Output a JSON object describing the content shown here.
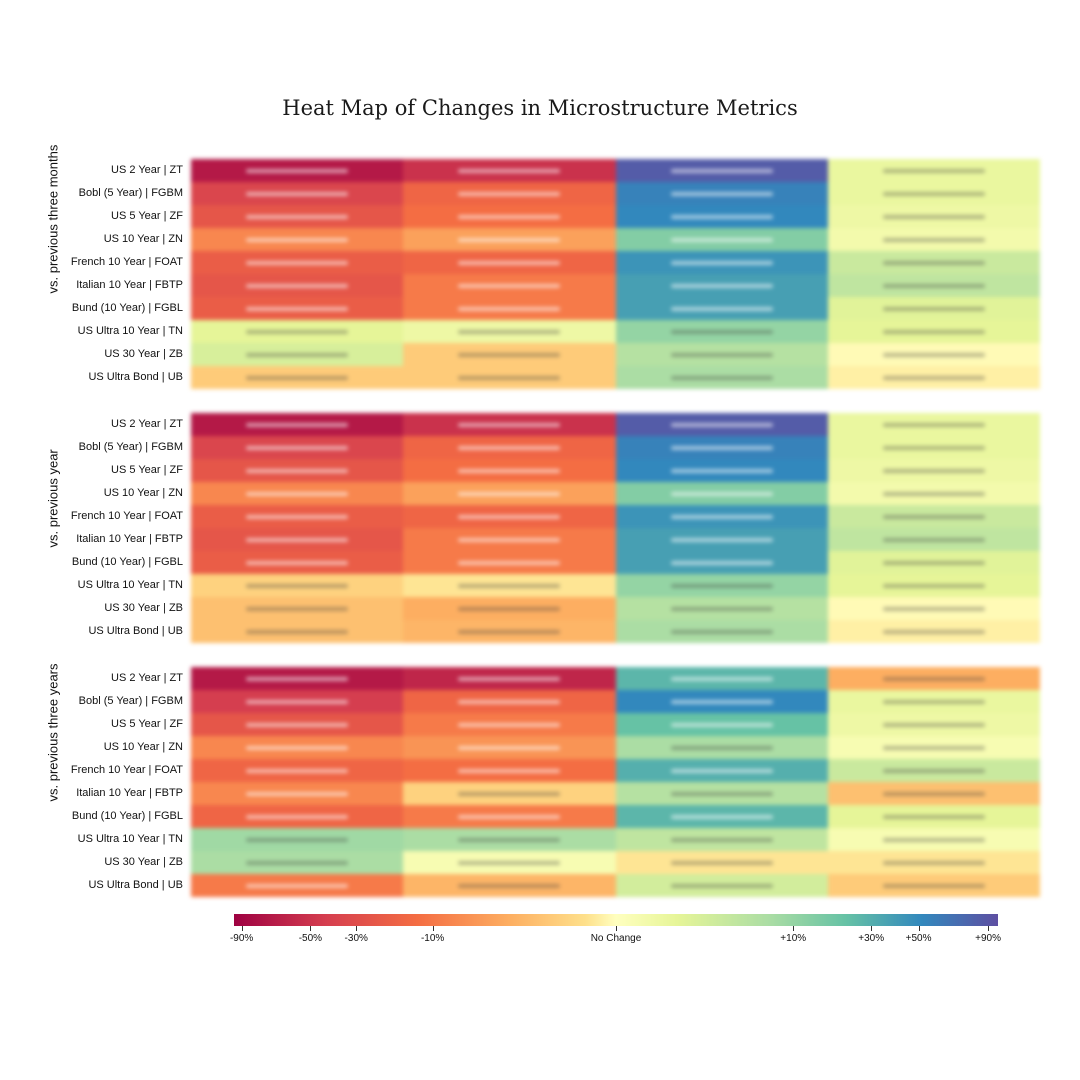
{
  "chart_data": {
    "type": "heatmap",
    "title": "Heat Map of Changes in Microstructure Metrics",
    "columns": [
      "",
      "",
      "",
      ""
    ],
    "rows": [
      "US 2 Year | ZT",
      "Bobl (5 Year) | FGBM",
      "US 5 Year | ZF",
      "US 10 Year | ZN",
      "French 10 Year | FOAT",
      "Italian 10 Year | FBTP",
      "Bund (10 Year) | FGBL",
      "US Ultra 10 Year | TN",
      "US 30 Year | ZB",
      "US Ultra Bond | UB"
    ],
    "groups": [
      {
        "name": "vs. previous three months",
        "values": [
          [
            -90,
            -80,
            90,
            5
          ],
          [
            -70,
            -50,
            60,
            5
          ],
          [
            -60,
            -45,
            55,
            4
          ],
          [
            -35,
            -25,
            25,
            3
          ],
          [
            -55,
            -50,
            50,
            12
          ],
          [
            -60,
            -40,
            45,
            14
          ],
          [
            -55,
            -40,
            45,
            7
          ],
          [
            6,
            4,
            22,
            6
          ],
          [
            9,
            -12,
            16,
            -1
          ],
          [
            -12,
            -12,
            18,
            -3
          ]
        ]
      },
      {
        "name": "vs. previous year",
        "values": [
          [
            -90,
            -80,
            90,
            5
          ],
          [
            -70,
            -50,
            60,
            5
          ],
          [
            -60,
            -45,
            55,
            4
          ],
          [
            -35,
            -25,
            25,
            3
          ],
          [
            -55,
            -50,
            50,
            12
          ],
          [
            -60,
            -40,
            45,
            14
          ],
          [
            -55,
            -40,
            45,
            7
          ],
          [
            -10,
            -5,
            22,
            6
          ],
          [
            -15,
            -20,
            16,
            -1
          ],
          [
            -15,
            -18,
            18,
            -3
          ]
        ]
      },
      {
        "name": "vs. previous three years",
        "values": [
          [
            -90,
            -85,
            35,
            -20
          ],
          [
            -75,
            -50,
            55,
            5
          ],
          [
            -60,
            -40,
            30,
            4
          ],
          [
            -35,
            -30,
            18,
            2
          ],
          [
            -50,
            -45,
            38,
            12
          ],
          [
            -35,
            -10,
            16,
            -15
          ],
          [
            -50,
            -40,
            35,
            6
          ],
          [
            20,
            18,
            14,
            2
          ],
          [
            18,
            2,
            -5,
            -5
          ],
          [
            -40,
            -18,
            10,
            -12
          ]
        ]
      }
    ],
    "colorbar": {
      "ticks": [
        "-90%",
        "-50%",
        "-30%",
        "-10%",
        "No Change",
        "+10%",
        "+30%",
        "+50%",
        "+90%"
      ],
      "tick_values": [
        -90,
        -50,
        -30,
        -10,
        0,
        10,
        30,
        50,
        90
      ],
      "min": -100,
      "max": 100
    }
  }
}
